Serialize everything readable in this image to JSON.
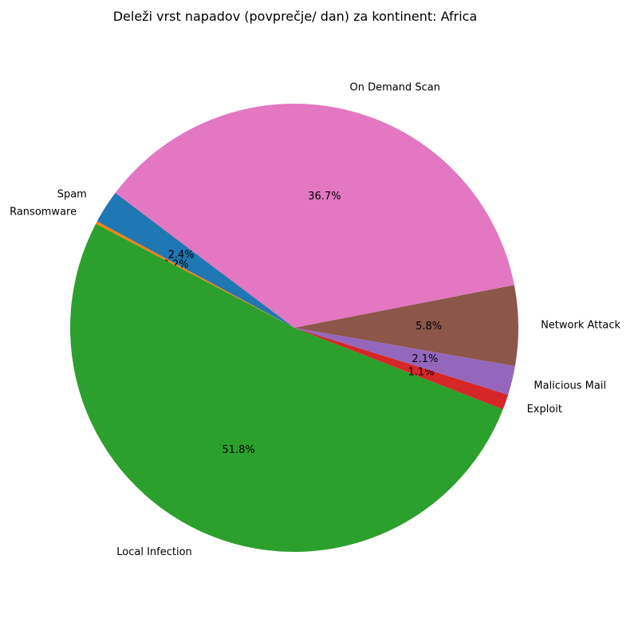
{
  "chart_data": {
    "type": "pie",
    "title": "Deleži vrst napadov (povprečje/ dan) za kontinent: Africa",
    "slices": [
      {
        "label": "Spam",
        "value": 2.4,
        "pct_label": "2.4%",
        "color": "#1f77b4"
      },
      {
        "label": "Ransomware",
        "value": 0.2,
        "pct_label": "0.2%",
        "color": "#ff7f0e"
      },
      {
        "label": "Local Infection",
        "value": 51.8,
        "pct_label": "51.8%",
        "color": "#2ca02c"
      },
      {
        "label": "Exploit",
        "value": 1.1,
        "pct_label": "1.1%",
        "color": "#d62728"
      },
      {
        "label": "Malicious Mail",
        "value": 2.1,
        "pct_label": "2.1%",
        "color": "#9467bd"
      },
      {
        "label": "Network Attack",
        "value": 5.8,
        "pct_label": "5.8%",
        "color": "#8c564b"
      },
      {
        "label": "On Demand Scan",
        "value": 36.7,
        "pct_label": "36.7%",
        "color": "#e377c2"
      }
    ]
  }
}
